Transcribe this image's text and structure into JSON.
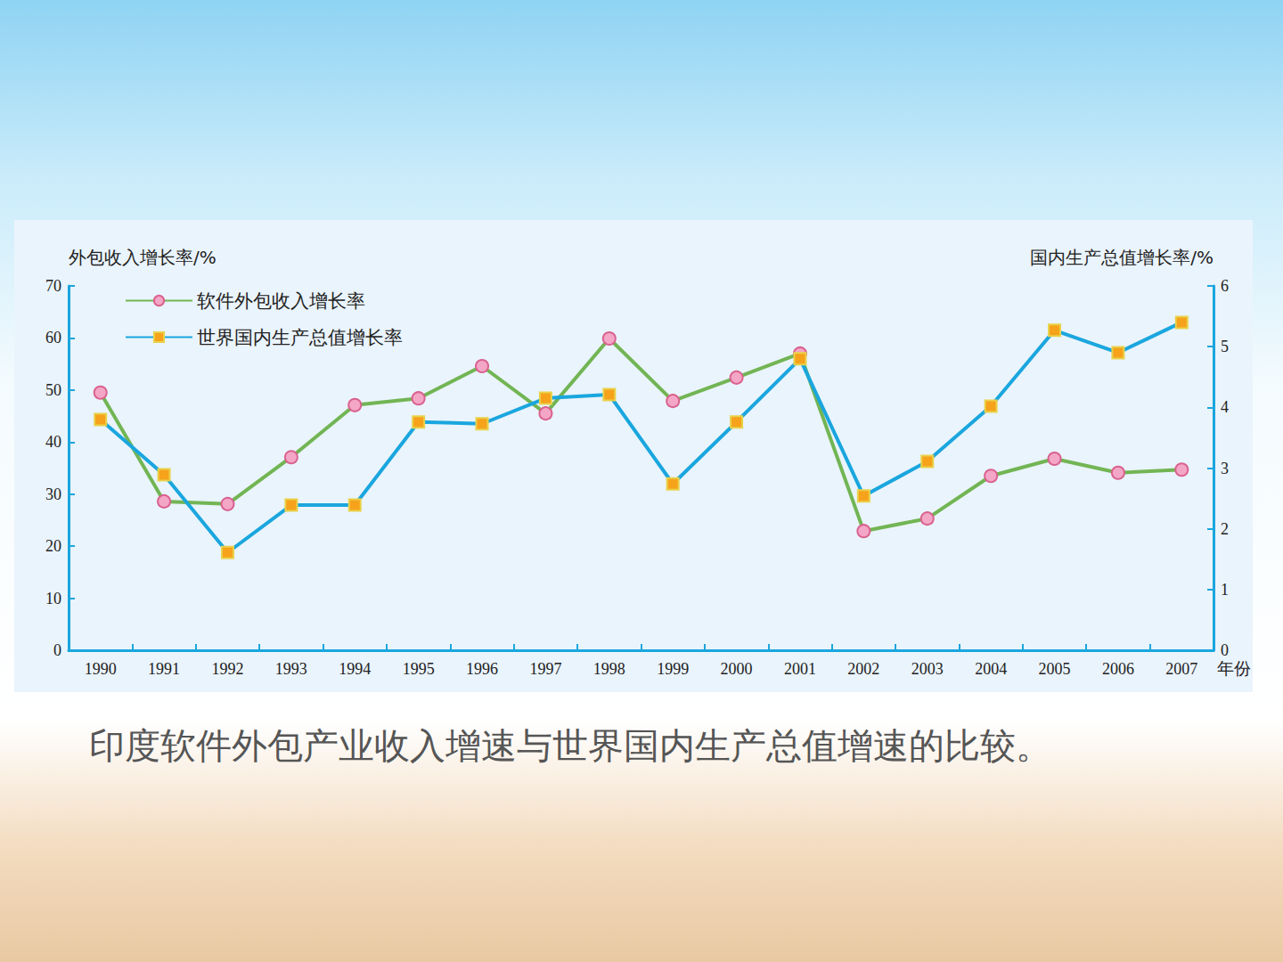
{
  "chart_data": {
    "type": "line",
    "title": "印度软件外包产业收入增速与世界国内生产总值增速的比较。",
    "x_label": "年份",
    "y_label": "外包收入增长率/%",
    "y2_label": "国内生产总值增长率/%",
    "categories": [
      "1990",
      "1991",
      "1992",
      "1993",
      "1994",
      "1995",
      "1996",
      "1997",
      "1998",
      "1999",
      "2000",
      "2001",
      "2002",
      "2003",
      "2004",
      "2005",
      "2006",
      "2007"
    ],
    "series": [
      {
        "name": "软件外包收入增长率",
        "color": "#72b554",
        "marker": "circle",
        "values": [
          49.5,
          28.6,
          28.1,
          37.1,
          47.1,
          48.4,
          54.6,
          45.5,
          59.9,
          47.9,
          52.4,
          57.0,
          22.9,
          25.3,
          33.5,
          36.8,
          34.1,
          34.7
        ]
      },
      {
        "name": "世界国内生产总值增长率",
        "color": "#1aa6de",
        "marker": "square",
        "axis": "y2",
        "values": [
          3.8,
          2.89,
          1.61,
          2.39,
          2.39,
          3.76,
          3.73,
          4.15,
          4.21,
          2.74,
          3.76,
          4.8,
          2.54,
          3.11,
          4.02,
          5.27,
          4.9,
          5.4
        ]
      }
    ],
    "ylim": [
      0,
      70
    ],
    "yticks": [
      0,
      10,
      20,
      30,
      40,
      50,
      60,
      70
    ],
    "y2lim": [
      0,
      6
    ],
    "y2ticks": [
      0,
      1,
      2,
      3,
      4,
      5,
      6
    ],
    "grid": false,
    "legend": "upper left"
  }
}
